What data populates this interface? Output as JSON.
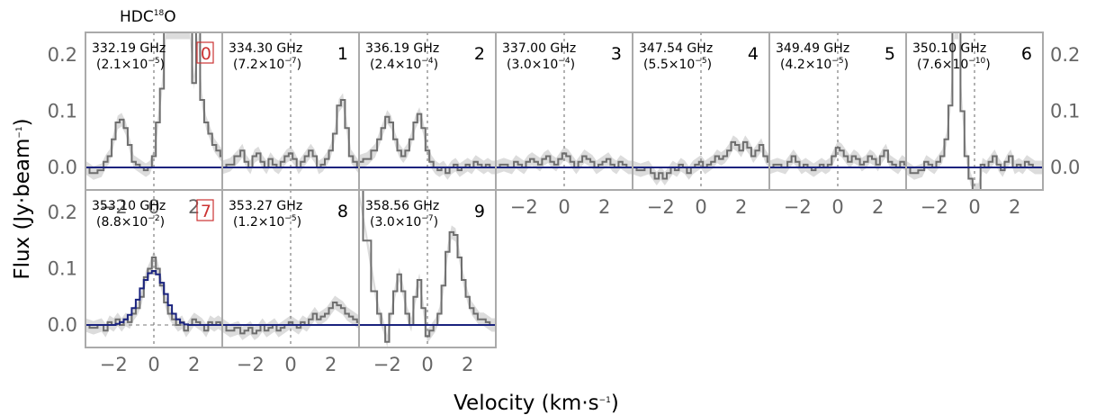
{
  "title": {
    "base": "HDC",
    "sup": "18",
    "tail": "O"
  },
  "ylabel": {
    "a": "Flux (Jy·beam",
    "sup": "−1",
    "b": ")"
  },
  "xlabel": {
    "a": "Velocity (km·s",
    "sup": "−1",
    "b": ")"
  },
  "chart_data": {
    "type": "line",
    "title": "HDC18O",
    "xlabel": "Velocity (km·s⁻¹)",
    "ylabel": "Flux (Jy·beam⁻¹)",
    "xlim": [
      -3.4,
      3.4
    ],
    "ylim": [
      -0.04,
      0.24
    ],
    "xticks": [
      -2,
      0,
      2
    ],
    "yticks": [
      0.0,
      0.1,
      0.2
    ],
    "xtick_labels": [
      "−2",
      "0",
      "2"
    ],
    "ytick_labels": [
      "0.0",
      "0.1",
      "0.2"
    ],
    "colors": {
      "observed": "#6e6e6e",
      "noise_band": "#dcdcdc",
      "model": "#1a237e",
      "frame": "#aaaaaa",
      "marker_box": "#cc3333"
    },
    "panels": [
      {
        "index": "0",
        "boxed": true,
        "freq": "332.19 GHz",
        "coef": {
          "m": "2.1",
          "e": "−5"
        },
        "v": [
          -3.4,
          -3.0,
          -2.6,
          -2.4,
          -2.2,
          -2.0,
          -1.8,
          -1.6,
          -1.4,
          -1.2,
          -1.0,
          -0.8,
          -0.6,
          -0.4,
          -0.2,
          0.0,
          0.2,
          0.4,
          0.6,
          0.8,
          1.0,
          1.2,
          1.4,
          1.6,
          1.8,
          2.0,
          2.2,
          2.4,
          2.6,
          2.8,
          3.0,
          3.2,
          3.4
        ],
        "f": [
          0.0,
          -0.01,
          -0.005,
          0.01,
          0.02,
          0.05,
          0.08,
          0.085,
          0.07,
          0.04,
          0.01,
          0.005,
          0.0,
          -0.005,
          0.0,
          0.02,
          0.08,
          0.14,
          0.24,
          0.24,
          0.24,
          0.24,
          0.24,
          0.24,
          0.24,
          0.15,
          0.24,
          0.12,
          0.08,
          0.06,
          0.04,
          0.03,
          0.02
        ]
      },
      {
        "index": "1",
        "boxed": false,
        "freq": "334.30 GHz",
        "coef": {
          "m": "7.2",
          "e": "−7"
        },
        "v": [
          -3.4,
          -3.0,
          -2.6,
          -2.4,
          -2.2,
          -2.0,
          -1.8,
          -1.6,
          -1.4,
          -1.2,
          -1.0,
          -0.8,
          -0.6,
          -0.4,
          -0.2,
          0.0,
          0.2,
          0.4,
          0.6,
          0.8,
          1.0,
          1.2,
          1.4,
          1.6,
          1.8,
          2.0,
          2.2,
          2.4,
          2.6,
          2.8,
          3.0,
          3.2,
          3.4
        ],
        "f": [
          0.0,
          0.005,
          0.02,
          0.03,
          0.01,
          0.0,
          0.02,
          0.025,
          0.01,
          0.0,
          0.015,
          0.005,
          0.0,
          0.01,
          0.02,
          0.025,
          0.015,
          0.0,
          0.01,
          0.02,
          0.03,
          0.02,
          0.0,
          0.005,
          0.015,
          0.03,
          0.06,
          0.11,
          0.12,
          0.07,
          0.02,
          0.01,
          0.0
        ]
      },
      {
        "index": "2",
        "boxed": false,
        "freq": "336.19 GHz",
        "coef": {
          "m": "2.4",
          "e": "−4"
        },
        "v": [
          -3.4,
          -3.0,
          -2.6,
          -2.4,
          -2.2,
          -2.0,
          -1.8,
          -1.6,
          -1.4,
          -1.2,
          -1.0,
          -0.8,
          -0.6,
          -0.4,
          -0.2,
          0.0,
          0.2,
          0.4,
          0.6,
          0.8,
          1.0,
          1.2,
          1.4,
          1.6,
          1.8,
          2.0,
          2.2,
          2.4,
          2.6,
          2.8,
          3.0,
          3.2,
          3.4
        ],
        "f": [
          0.01,
          0.015,
          0.03,
          0.05,
          0.07,
          0.09,
          0.08,
          0.05,
          0.03,
          0.02,
          0.03,
          0.05,
          0.08,
          0.095,
          0.07,
          0.03,
          0.01,
          0.0,
          -0.005,
          0.0,
          -0.01,
          0.0,
          0.005,
          -0.005,
          0.0,
          0.005,
          0.0,
          0.01,
          0.005,
          0.0,
          0.005,
          0.0,
          0.0
        ]
      },
      {
        "index": "3",
        "boxed": false,
        "freq": "337.00 GHz",
        "coef": {
          "m": "3.0",
          "e": "−4"
        },
        "v": [
          -3.4,
          -3.0,
          -2.6,
          -2.4,
          -2.2,
          -2.0,
          -1.8,
          -1.6,
          -1.4,
          -1.2,
          -1.0,
          -0.8,
          -0.6,
          -0.4,
          -0.2,
          0.0,
          0.2,
          0.4,
          0.6,
          0.8,
          1.0,
          1.2,
          1.4,
          1.6,
          1.8,
          2.0,
          2.2,
          2.4,
          2.6,
          2.8,
          3.0,
          3.2,
          3.4
        ],
        "f": [
          0.0,
          0.005,
          0.0,
          0.01,
          0.005,
          0.0,
          0.01,
          0.015,
          0.01,
          0.005,
          0.015,
          0.02,
          0.01,
          0.005,
          0.015,
          0.025,
          0.02,
          0.01,
          0.0,
          0.01,
          0.02,
          0.015,
          0.01,
          0.0,
          0.005,
          0.01,
          0.015,
          0.005,
          0.0,
          0.01,
          0.005,
          0.0,
          0.0
        ]
      },
      {
        "index": "4",
        "boxed": false,
        "freq": "347.54 GHz",
        "coef": {
          "m": "5.5",
          "e": "−5"
        },
        "v": [
          -3.4,
          -3.0,
          -2.6,
          -2.4,
          -2.2,
          -2.0,
          -1.8,
          -1.6,
          -1.4,
          -1.2,
          -1.0,
          -0.8,
          -0.6,
          -0.4,
          -0.2,
          0.0,
          0.2,
          0.4,
          0.6,
          0.8,
          1.0,
          1.2,
          1.4,
          1.6,
          1.8,
          2.0,
          2.2,
          2.4,
          2.6,
          2.8,
          3.0,
          3.2,
          3.4
        ],
        "f": [
          0.0,
          -0.005,
          0.0,
          -0.01,
          -0.02,
          -0.01,
          -0.02,
          -0.01,
          0.0,
          -0.005,
          0.005,
          0.0,
          -0.01,
          0.0,
          0.005,
          0.01,
          0.0,
          0.005,
          0.01,
          0.02,
          0.015,
          0.02,
          0.03,
          0.045,
          0.04,
          0.03,
          0.045,
          0.035,
          0.02,
          0.03,
          0.04,
          0.02,
          0.01
        ]
      },
      {
        "index": "5",
        "boxed": false,
        "freq": "349.49 GHz",
        "coef": {
          "m": "4.2",
          "e": "−5"
        },
        "v": [
          -3.4,
          -3.0,
          -2.6,
          -2.4,
          -2.2,
          -2.0,
          -1.8,
          -1.6,
          -1.4,
          -1.2,
          -1.0,
          -0.8,
          -0.6,
          -0.4,
          -0.2,
          0.0,
          0.2,
          0.4,
          0.6,
          0.8,
          1.0,
          1.2,
          1.4,
          1.6,
          1.8,
          2.0,
          2.2,
          2.4,
          2.6,
          2.8,
          3.0,
          3.2,
          3.4
        ],
        "f": [
          0.0,
          0.005,
          0.0,
          0.01,
          0.02,
          0.01,
          0.0,
          0.005,
          0.0,
          -0.005,
          0.0,
          0.005,
          0.0,
          0.005,
          0.02,
          0.035,
          0.03,
          0.02,
          0.01,
          0.02,
          0.015,
          0.005,
          0.01,
          0.02,
          0.015,
          0.005,
          0.02,
          0.03,
          0.01,
          0.005,
          0.0,
          0.01,
          0.005
        ]
      },
      {
        "index": "6",
        "boxed": false,
        "freq": "350.10 GHz",
        "coef": {
          "m": "7.6",
          "e": "−10"
        },
        "v": [
          -3.4,
          -3.0,
          -2.6,
          -2.4,
          -2.2,
          -2.0,
          -1.8,
          -1.6,
          -1.4,
          -1.2,
          -1.0,
          -0.8,
          -0.6,
          -0.4,
          -0.2,
          0.0,
          0.2,
          0.4,
          0.6,
          0.8,
          1.0,
          1.2,
          1.4,
          1.6,
          1.8,
          2.0,
          2.2,
          2.4,
          2.6,
          2.8,
          3.0,
          3.2,
          3.4
        ],
        "f": [
          0.0,
          -0.01,
          -0.005,
          0.01,
          0.005,
          0.0,
          0.01,
          0.02,
          0.05,
          0.11,
          0.24,
          0.24,
          0.1,
          0.02,
          -0.02,
          -0.04,
          -0.04,
          0.005,
          0.0,
          0.01,
          0.02,
          0.005,
          -0.005,
          0.01,
          0.02,
          0.0,
          0.005,
          0.0,
          0.01,
          0.005,
          0.0,
          0.0,
          0.0
        ]
      },
      {
        "index": "7",
        "boxed": true,
        "freq": "353.10 GHz",
        "coef": {
          "m": "8.8",
          "e": "−2"
        },
        "v": [
          -3.4,
          -3.0,
          -2.6,
          -2.4,
          -2.2,
          -2.0,
          -1.8,
          -1.6,
          -1.4,
          -1.2,
          -1.0,
          -0.8,
          -0.6,
          -0.4,
          -0.2,
          0.0,
          0.2,
          0.4,
          0.6,
          0.8,
          1.0,
          1.2,
          1.4,
          1.6,
          1.8,
          2.0,
          2.2,
          2.4,
          2.6,
          2.8,
          3.0,
          3.2,
          3.4
        ],
        "f": [
          0.0,
          -0.005,
          0.0,
          -0.01,
          0.005,
          0.0,
          0.01,
          0.0,
          0.01,
          0.005,
          0.02,
          0.03,
          0.05,
          0.085,
          0.1,
          0.12,
          0.1,
          0.07,
          0.04,
          0.02,
          0.01,
          0.0,
          0.005,
          -0.01,
          0.0,
          0.01,
          0.005,
          0.0,
          -0.01,
          0.005,
          0.0,
          0.005,
          0.0
        ],
        "model": [
          0.0,
          0.0,
          0.0,
          0.0,
          0.0,
          0.0,
          0.002,
          0.005,
          0.01,
          0.018,
          0.03,
          0.045,
          0.065,
          0.08,
          0.092,
          0.096,
          0.09,
          0.075,
          0.055,
          0.035,
          0.02,
          0.01,
          0.004,
          0.001,
          0.0,
          0.0,
          0.0,
          0.0,
          0.0,
          0.0,
          0.0,
          0.0,
          0.0
        ]
      },
      {
        "index": "8",
        "boxed": false,
        "freq": "353.27 GHz",
        "coef": {
          "m": "1.2",
          "e": "−5"
        },
        "v": [
          -3.4,
          -3.0,
          -2.6,
          -2.4,
          -2.2,
          -2.0,
          -1.8,
          -1.6,
          -1.4,
          -1.2,
          -1.0,
          -0.8,
          -0.6,
          -0.4,
          -0.2,
          0.0,
          0.2,
          0.4,
          0.6,
          0.8,
          1.0,
          1.2,
          1.4,
          1.6,
          1.8,
          2.0,
          2.2,
          2.4,
          2.6,
          2.8,
          3.0,
          3.2,
          3.4
        ],
        "f": [
          0.0,
          -0.01,
          -0.005,
          -0.015,
          -0.01,
          -0.005,
          -0.015,
          -0.01,
          0.0,
          -0.01,
          -0.005,
          0.0,
          -0.01,
          -0.005,
          0.0,
          0.005,
          0.0,
          -0.005,
          0.005,
          0.0,
          0.01,
          0.02,
          0.01,
          0.015,
          0.02,
          0.03,
          0.04,
          0.035,
          0.03,
          0.02,
          0.015,
          0.01,
          0.005
        ]
      },
      {
        "index": "9",
        "boxed": false,
        "freq": "358.56 GHz",
        "coef": {
          "m": "3.0",
          "e": "−7"
        },
        "v": [
          -3.4,
          -3.0,
          -2.6,
          -2.4,
          -2.2,
          -2.0,
          -1.8,
          -1.6,
          -1.4,
          -1.2,
          -1.0,
          -0.8,
          -0.6,
          -0.4,
          -0.2,
          0.0,
          0.2,
          0.4,
          0.6,
          0.8,
          1.0,
          1.2,
          1.4,
          1.6,
          1.8,
          2.0,
          2.2,
          2.4,
          2.6,
          2.8,
          3.0,
          3.2,
          3.4
        ],
        "f": [
          0.24,
          0.15,
          0.06,
          0.02,
          0.0,
          -0.03,
          0.02,
          0.06,
          0.09,
          0.06,
          0.02,
          0.0,
          0.05,
          0.08,
          0.03,
          -0.02,
          -0.01,
          0.0,
          0.02,
          0.07,
          0.13,
          0.165,
          0.16,
          0.12,
          0.08,
          0.05,
          0.03,
          0.02,
          0.01,
          0.01,
          0.005,
          0.0,
          0.0
        ]
      }
    ]
  }
}
